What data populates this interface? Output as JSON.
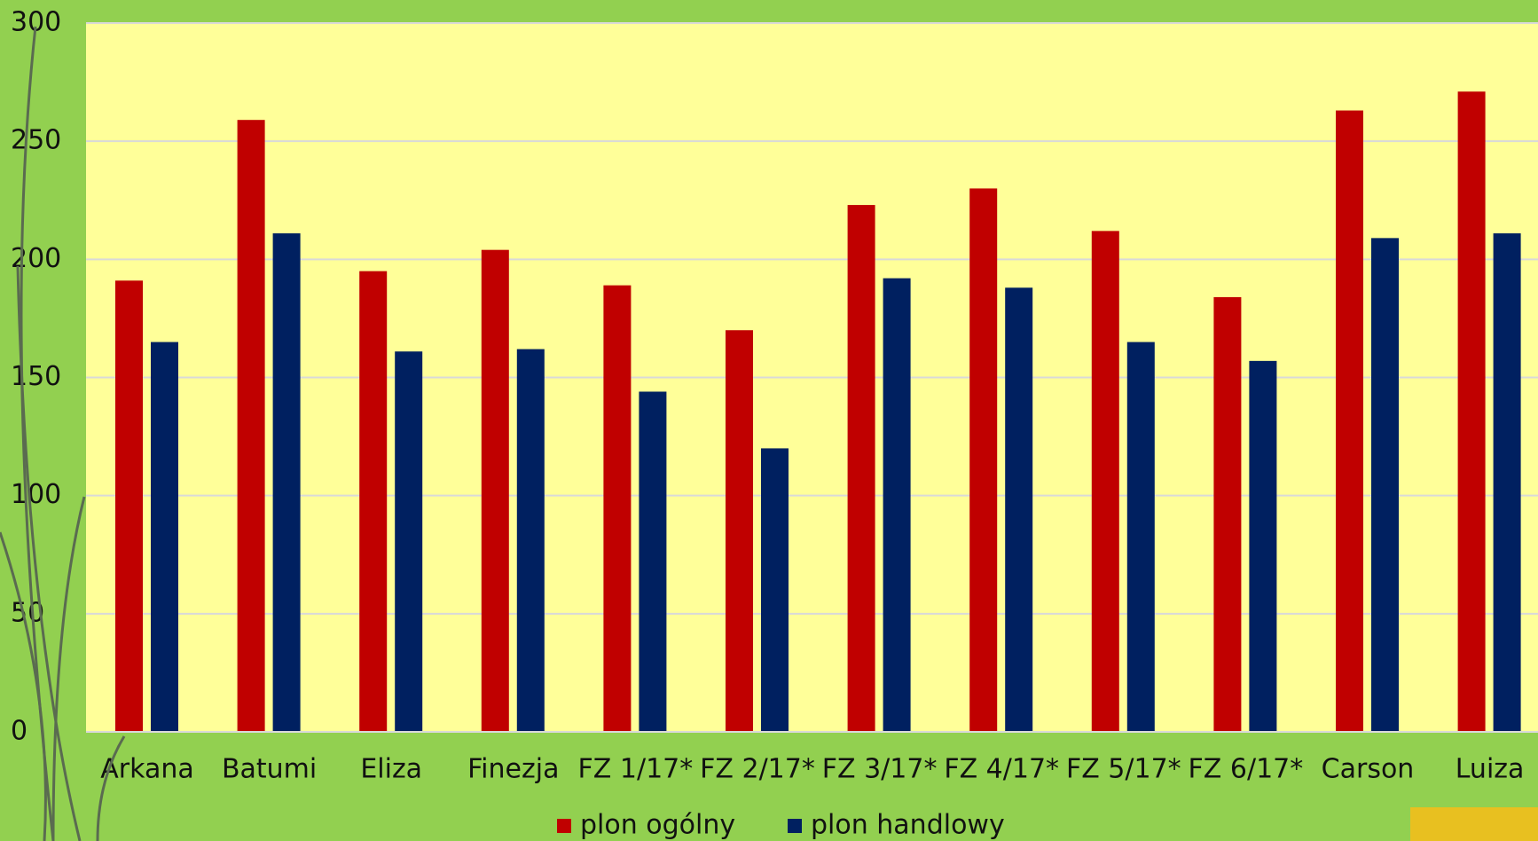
{
  "chart_data": {
    "type": "bar",
    "categories": [
      "Arkana",
      "Batumi",
      "Eliza",
      "Finezja",
      "FZ 1/17*",
      "FZ 2/17*",
      "FZ 3/17*",
      "FZ 4/17*",
      "FZ 5/17*",
      "FZ 6/17*",
      "Carson",
      "Luiza"
    ],
    "series": [
      {
        "name": "plon ogólny",
        "color": "#c00000",
        "values": [
          191,
          259,
          195,
          204,
          189,
          170,
          223,
          230,
          212,
          184,
          263,
          271
        ]
      },
      {
        "name": "plon handlowy",
        "color": "#002060",
        "values": [
          165,
          211,
          161,
          162,
          144,
          120,
          192,
          188,
          165,
          157,
          209,
          211
        ]
      }
    ],
    "ylim": [
      0,
      300
    ],
    "yticks": [
      0,
      50,
      100,
      150,
      200,
      250,
      300
    ],
    "grid": true,
    "legend": "bottom"
  }
}
